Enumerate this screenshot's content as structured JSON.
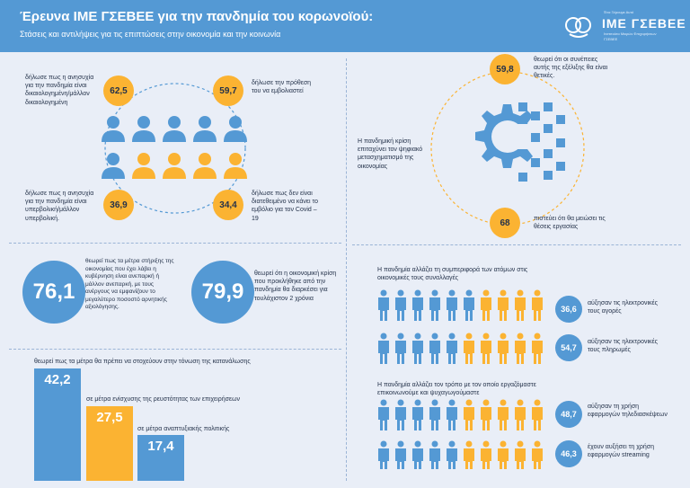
{
  "header": {
    "title": "Έρευνα ΙΜΕ ΓΣΕΒΕΕ για την πανδημία του κορωνοϊού:",
    "subtitle": "Στάσεις και αντιλήψεις για τις επιπτώσεις στην οικονομία και την κοινωνία",
    "logo_small": "Ένα Ξέρουμε Αυτό",
    "logo_name": "ΙΜΕ ΓΣΕΒΕΕ",
    "logo_sub1": "Ινστιτούτο Μικρών Επιχειρήσεων",
    "logo_sub2": "ΓΣΕΒΕΕ"
  },
  "colors": {
    "blue": "#5499d4",
    "orange": "#fbb332",
    "bg": "#e9eef7",
    "text": "#24324a"
  },
  "people": {
    "q1": {
      "value": "62,5",
      "text": "δήλωσε πως η ανησυχία για την πανδημία είναι δικαιολογημένη/μάλλον δικαιολογημένη"
    },
    "q2": {
      "value": "59,7",
      "text": "δήλωσε την πρόθεση του να εμβολιαστεί"
    },
    "q3": {
      "value": "36,9",
      "text": "δήλωσε πως η ανησυχία για την πανδημία είναι υπερβολική/μάλλον υπερβολική."
    },
    "q4": {
      "value": "34,4",
      "text": "δήλωσε πως δεν είναι διατεθειμένο να κάνει το εμβόλιο για τον Covid – 19"
    }
  },
  "gear": {
    "top": {
      "value": "59,8",
      "text": "θεωρεί ότι οι συνέπειες αυτής της εξέλιξης θα είναι θετικές."
    },
    "left_text": "Η πανδημική κρίση επιταχύνει τον ψηφιακό μετασχηματισμό της οικονομίας",
    "bottom": {
      "value": "68",
      "text": "πιστεύει ότι θα μειώσει τις θέσεις εργασίας"
    }
  },
  "big": {
    "b1": {
      "value": "76,1",
      "text": "θεωρεί πως τα μέτρα στήριξης της οικονομίας που έχει λάβει η κυβέρνηση είναι ανεπαρκή ή μάλλον ανεπαρκή, με τους ανέργους να εμφανίζουν το μεγαλύτερο ποσοστό αρνητικής αξιολόγησης."
    },
    "b2": {
      "value": "79,9",
      "text": "θεωρεί ότι η οικονομική κρίση που προκλήθηκε από την πανδημία θα διαρκέσει για τουλάχιστον 2 χρόνια"
    }
  },
  "measures": {
    "title": "θεωρεί πως τα μέτρα θα πρέπει να στοχεύουν στην τόνωση της κατανάλωσης",
    "bars": [
      {
        "value": "42,2",
        "label": ""
      },
      {
        "value": "27,5",
        "label": "σε μέτρα ενίσχυσης της ρευστότητας των επιχειρήσεων"
      },
      {
        "value": "17,4",
        "label": "σε μέτρα αναπτυξιακής πολιτικής"
      }
    ]
  },
  "behavior": {
    "title": "Η πανδημία αλλάζει τη συμπεριφορά των ατόμων στις οικονομικές τους συναλλαγές",
    "stats": [
      {
        "value": "36,6",
        "text": "αύξησαν τις ηλεκτρονικές τους αγορές"
      },
      {
        "value": "54,7",
        "text": "αύξησαν τις ηλεκτρονικές τους πληρωμές"
      }
    ]
  },
  "communication": {
    "title": "Η πανδημία αλλάζει τον τρόπο με τον οποίο εργαζόμαστε επικοινωνούμε και ψυχαγωγούμαστε",
    "stats": [
      {
        "value": "48,7",
        "text": "αύξησαν τη χρήση εφαρμογών τηλεδιασκέψεων"
      },
      {
        "value": "46,3",
        "text": "έχουν αυξήσει τη χρήση εφαρμογών streaming"
      }
    ]
  }
}
